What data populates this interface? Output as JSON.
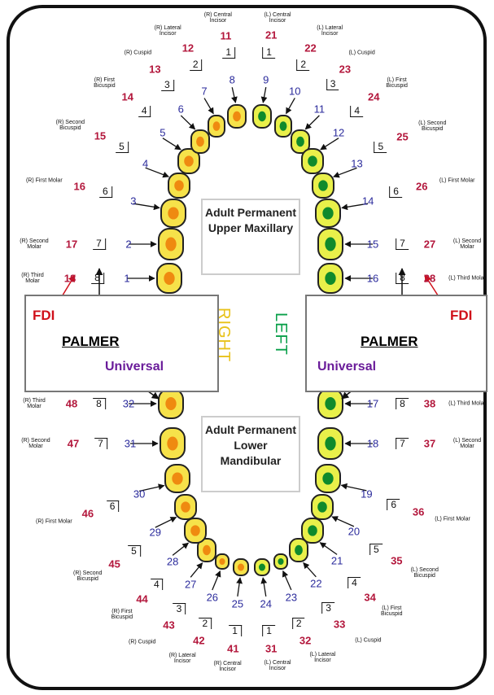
{
  "teeth": [
    {
      "universal": 1,
      "fdi": 18,
      "palmer": 8,
      "name": "(R) Third Molar"
    },
    {
      "universal": 2,
      "fdi": 17,
      "palmer": 7,
      "name": "(R) Second Molar"
    },
    {
      "universal": 3,
      "fdi": 16,
      "palmer": 6,
      "name": "(R) First Molar"
    },
    {
      "universal": 4,
      "fdi": 15,
      "palmer": 5,
      "name": "(R) Second Bicuspid"
    },
    {
      "universal": 5,
      "fdi": 14,
      "palmer": 4,
      "name": "(R) First Bicuspid"
    },
    {
      "universal": 6,
      "fdi": 13,
      "palmer": 3,
      "name": "(R) Cuspid"
    },
    {
      "universal": 7,
      "fdi": 12,
      "palmer": 2,
      "name": "(R) Lateral Incisor"
    },
    {
      "universal": 8,
      "fdi": 11,
      "palmer": 1,
      "name": "(R) Central Incisor"
    },
    {
      "universal": 9,
      "fdi": 21,
      "palmer": 1,
      "name": "(L) Central Incisor"
    },
    {
      "universal": 10,
      "fdi": 22,
      "palmer": 2,
      "name": "(L) Lateral Incisor"
    },
    {
      "universal": 11,
      "fdi": 23,
      "palmer": 3,
      "name": "(L) Cuspid"
    },
    {
      "universal": 12,
      "fdi": 24,
      "palmer": 4,
      "name": "(L) First Bicuspid"
    },
    {
      "universal": 13,
      "fdi": 25,
      "palmer": 5,
      "name": "(L) Second Bicuspid"
    },
    {
      "universal": 14,
      "fdi": 26,
      "palmer": 6,
      "name": "(L) First Molar"
    },
    {
      "universal": 15,
      "fdi": 27,
      "palmer": 7,
      "name": "(L) Second Molar"
    },
    {
      "universal": 16,
      "fdi": 28,
      "palmer": 8,
      "name": "(L) Third Molar"
    },
    {
      "universal": 17,
      "fdi": 38,
      "palmer": 8,
      "name": "(L) Third Molar"
    },
    {
      "universal": 18,
      "fdi": 37,
      "palmer": 7,
      "name": "(L) Second Molar"
    },
    {
      "universal": 19,
      "fdi": 36,
      "palmer": 6,
      "name": "(L) First Molar"
    },
    {
      "universal": 20,
      "fdi": 35,
      "palmer": 5,
      "name": "(L) Second Bicuspid"
    },
    {
      "universal": 21,
      "fdi": 34,
      "palmer": 4,
      "name": "(L) First Bicuspid"
    },
    {
      "universal": 22,
      "fdi": 33,
      "palmer": 3,
      "name": "(L) Cuspid"
    },
    {
      "universal": 23,
      "fdi": 32,
      "palmer": 2,
      "name": "(L) Lateral Incisor"
    },
    {
      "universal": 24,
      "fdi": 31,
      "palmer": 1,
      "name": "(L) Central Incisor"
    },
    {
      "universal": 25,
      "fdi": 41,
      "palmer": 1,
      "name": "(R) Central Incisor"
    },
    {
      "universal": 26,
      "fdi": 42,
      "palmer": 2,
      "name": "(R) Lateral Incisor"
    },
    {
      "universal": 27,
      "fdi": 43,
      "palmer": 3,
      "name": "(R) Cuspid"
    },
    {
      "universal": 28,
      "fdi": 44,
      "palmer": 4,
      "name": "(R) First Bicuspid"
    },
    {
      "universal": 29,
      "fdi": 45,
      "palmer": 5,
      "name": "(R) Second Bicuspid"
    },
    {
      "universal": 30,
      "fdi": 46,
      "palmer": 6,
      "name": "(R) First Molar"
    },
    {
      "universal": 31,
      "fdi": 47,
      "palmer": 7,
      "name": "(R) Second Molar"
    },
    {
      "universal": 32,
      "fdi": 48,
      "palmer": 8,
      "name": "(R) Third Molar"
    }
  ],
  "sections": [
    {
      "title": "Adult Permanent Upper Maxillary"
    },
    {
      "title": "Adult Permanent Lower Mandibular"
    }
  ],
  "sides": {
    "right": "RIGHT",
    "left": "LEFT"
  },
  "boxes": [
    {
      "fdi": "FDI",
      "palmer": "PALMER",
      "universal": "Universal"
    },
    {
      "fdi": "FDI",
      "palmer": "PALMER",
      "universal": "Universal"
    }
  ]
}
